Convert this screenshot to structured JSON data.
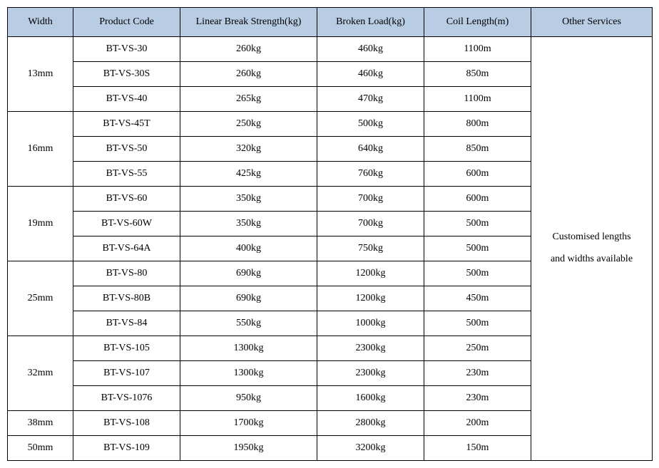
{
  "table": {
    "header_bg": "#b8cce4",
    "columns": [
      {
        "key": "width",
        "label": "Width"
      },
      {
        "key": "code",
        "label": "Product Code"
      },
      {
        "key": "strength",
        "label": "Linear Break Strength(kg)"
      },
      {
        "key": "load",
        "label": "Broken Load(kg)"
      },
      {
        "key": "coil",
        "label": "Coil Length(m)"
      },
      {
        "key": "services",
        "label": "Other Services"
      }
    ],
    "groups": [
      {
        "width": "13mm",
        "rows": [
          {
            "code": "BT-VS-30",
            "strength": "260kg",
            "load": "460kg",
            "coil": "1100m"
          },
          {
            "code": "BT-VS-30S",
            "strength": "260kg",
            "load": "460kg",
            "coil": "850m"
          },
          {
            "code": "BT-VS-40",
            "strength": "265kg",
            "load": "470kg",
            "coil": "1100m"
          }
        ]
      },
      {
        "width": "16mm",
        "rows": [
          {
            "code": "BT-VS-45T",
            "strength": "250kg",
            "load": "500kg",
            "coil": "800m"
          },
          {
            "code": "BT-VS-50",
            "strength": "320kg",
            "load": "640kg",
            "coil": "850m"
          },
          {
            "code": "BT-VS-55",
            "strength": "425kg",
            "load": "760kg",
            "coil": "600m"
          }
        ]
      },
      {
        "width": "19mm",
        "rows": [
          {
            "code": "BT-VS-60",
            "strength": "350kg",
            "load": "700kg",
            "coil": "600m"
          },
          {
            "code": "BT-VS-60W",
            "strength": "350kg",
            "load": "700kg",
            "coil": "500m"
          },
          {
            "code": "BT-VS-64A",
            "strength": "400kg",
            "load": "750kg",
            "coil": "500m"
          }
        ]
      },
      {
        "width": "25mm",
        "rows": [
          {
            "code": "BT-VS-80",
            "strength": "690kg",
            "load": "1200kg",
            "coil": "500m"
          },
          {
            "code": "BT-VS-80B",
            "strength": "690kg",
            "load": "1200kg",
            "coil": "450m"
          },
          {
            "code": "BT-VS-84",
            "strength": "550kg",
            "load": "1000kg",
            "coil": "500m"
          }
        ]
      },
      {
        "width": "32mm",
        "rows": [
          {
            "code": "BT-VS-105",
            "strength": "1300kg",
            "load": "2300kg",
            "coil": "250m"
          },
          {
            "code": "BT-VS-107",
            "strength": "1300kg",
            "load": "2300kg",
            "coil": "230m"
          },
          {
            "code": "BT-VS-1076",
            "strength": "950kg",
            "load": "1600kg",
            "coil": "230m"
          }
        ]
      },
      {
        "width": "38mm",
        "rows": [
          {
            "code": "BT-VS-108",
            "strength": "1700kg",
            "load": "2800kg",
            "coil": "200m"
          }
        ]
      },
      {
        "width": "50mm",
        "rows": [
          {
            "code": "BT-VS-109",
            "strength": "1950kg",
            "load": "3200kg",
            "coil": "150m"
          }
        ]
      }
    ],
    "services_line1": "Customised lengths",
    "services_line2": "and widths available"
  }
}
